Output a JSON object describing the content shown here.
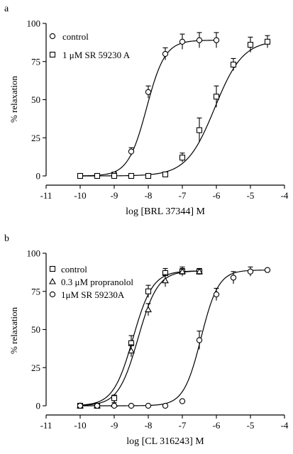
{
  "chart_data": [
    {
      "type": "scatter",
      "panel_label": "a",
      "xlabel": "log [BRL 37344] M",
      "ylabel": "% relaxation",
      "xlim": [
        -11,
        -4
      ],
      "ylim": [
        0,
        100
      ],
      "x_ticks": [
        -11,
        -10,
        -9,
        -8,
        -7,
        -6,
        -5,
        -4
      ],
      "y_ticks": [
        0,
        25,
        50,
        75,
        100
      ],
      "grid": false,
      "legend_position": "top-left",
      "series": [
        {
          "name": "control",
          "marker": "circle",
          "x": [
            -10,
            -9.5,
            -9,
            -8.5,
            -8,
            -7.5,
            -7,
            -6.5,
            -6
          ],
          "y": [
            0,
            0,
            1,
            16,
            55,
            80,
            88,
            89,
            89
          ],
          "err": [
            0,
            0,
            1.5,
            2.5,
            4,
            4,
            5,
            5,
            5
          ],
          "fit": {
            "bottom": 0,
            "top": 89,
            "log_ec50": -8.05,
            "hill": 1.6
          }
        },
        {
          "name": "1 μM SR 59230 A",
          "marker": "square",
          "x": [
            -10,
            -9.5,
            -9,
            -8.5,
            -8,
            -7.5,
            -7,
            -6.5,
            -6,
            -5.5,
            -5,
            -4.5
          ],
          "y": [
            0,
            0,
            0,
            0,
            0,
            1,
            12,
            30,
            52,
            73,
            86,
            88
          ],
          "err": [
            0,
            0,
            0,
            0,
            0,
            0,
            3,
            8,
            7,
            4,
            5,
            4
          ],
          "fit": {
            "bottom": 0,
            "top": 89,
            "log_ec50": -6.05,
            "hill": 1.05
          }
        }
      ]
    },
    {
      "type": "scatter",
      "panel_label": "b",
      "xlabel": "log [CL 316243] M",
      "ylabel": "% relaxation",
      "xlim": [
        -11,
        -4
      ],
      "ylim": [
        0,
        100
      ],
      "x_ticks": [
        -11,
        -10,
        -9,
        -8,
        -7,
        -6,
        -5,
        -4
      ],
      "y_ticks": [
        0,
        25,
        50,
        75,
        100
      ],
      "grid": false,
      "legend_position": "top-left",
      "series": [
        {
          "name": "control",
          "marker": "square",
          "x": [
            -10,
            -9.5,
            -9,
            -8.5,
            -8,
            -7.5,
            -7,
            -6.5
          ],
          "y": [
            0,
            0,
            5,
            41,
            75,
            87,
            88,
            88
          ],
          "err": [
            0,
            0,
            2,
            5,
            4,
            3,
            2,
            2
          ],
          "fit": {
            "bottom": 0,
            "top": 88.5,
            "log_ec50": -8.45,
            "hill": 1.5
          }
        },
        {
          "name": "0.3 μM propranolol",
          "marker": "triangle",
          "x": [
            -10,
            -9.5,
            -9,
            -8.5,
            -8,
            -7.5,
            -7,
            -6.5
          ],
          "y": [
            0,
            0,
            1,
            36,
            63,
            82,
            88,
            88
          ],
          "err": [
            0,
            0,
            1,
            4,
            4,
            4,
            3,
            2
          ],
          "fit": {
            "bottom": 0,
            "top": 88.5,
            "log_ec50": -8.3,
            "hill": 1.5
          }
        },
        {
          "name": "1μM SR 59230A",
          "marker": "circle",
          "x": [
            -10,
            -9.5,
            -9,
            -8.5,
            -8,
            -7.5,
            -7,
            -6.5,
            -6,
            -5.5,
            -5,
            -4.5
          ],
          "y": [
            0,
            0,
            0,
            0,
            0,
            0,
            3,
            43,
            73,
            84,
            88,
            89
          ],
          "err": [
            0,
            0,
            0,
            0,
            0,
            0,
            0,
            6,
            4,
            4,
            3,
            0
          ],
          "fit": {
            "bottom": 0,
            "top": 89,
            "log_ec50": -6.45,
            "hill": 1.7
          }
        }
      ]
    }
  ]
}
